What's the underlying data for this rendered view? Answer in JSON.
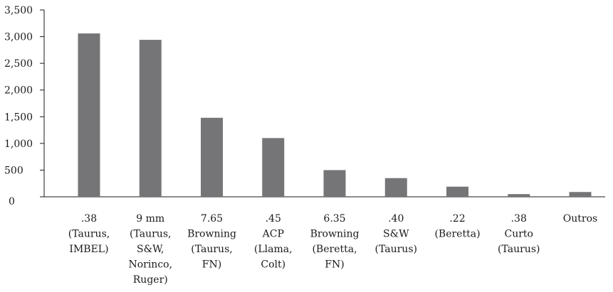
{
  "chart_data": {
    "type": "bar",
    "title": "",
    "xlabel": "",
    "ylabel": "",
    "ylim": [
      0,
      3500
    ],
    "yticks": [
      0,
      500,
      1000,
      1500,
      2000,
      2500,
      3000,
      3500
    ],
    "ytick_labels": [
      "0",
      "500",
      "1,000",
      "1,500",
      "2,000",
      "2,500",
      "3,000",
      "3,500"
    ],
    "grid": false,
    "legend": "none",
    "bar_color": "#757578",
    "categories": [
      [
        ".38",
        "(Taurus,",
        "IMBEL)"
      ],
      [
        "9 mm",
        "(Taurus,",
        "S&W,",
        "Norinco,",
        "Ruger)"
      ],
      [
        "7.65",
        "Browning",
        "(Taurus,",
        "FN)"
      ],
      [
        ".45",
        "ACP",
        "(Llama,",
        "Colt)"
      ],
      [
        "6.35",
        "Browning",
        "(Beretta,",
        "FN)"
      ],
      [
        ".40",
        "S&W",
        "(Taurus)"
      ],
      [
        ".22",
        "(Beretta)"
      ],
      [
        ".38",
        "Curto",
        "(Taurus)"
      ],
      [
        "Outros"
      ]
    ],
    "values": [
      3060,
      2940,
      1480,
      1100,
      500,
      350,
      190,
      50,
      90
    ]
  }
}
